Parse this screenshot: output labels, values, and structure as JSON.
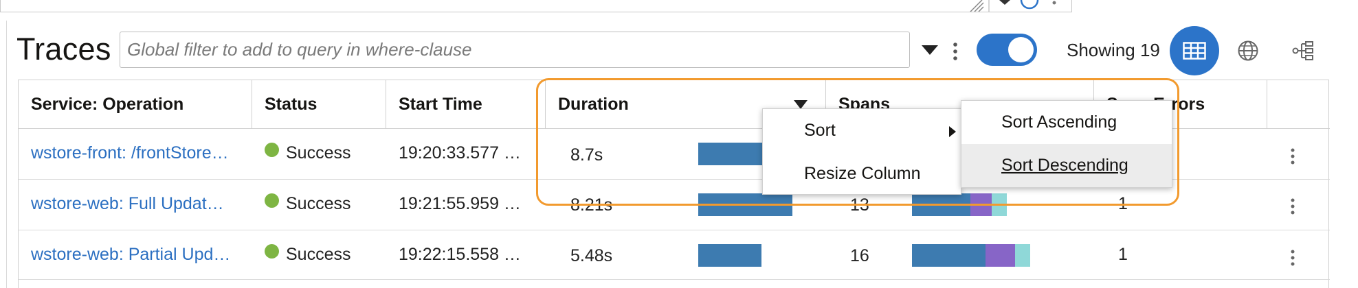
{
  "toolbar": {
    "title": "Traces",
    "filter_placeholder": "Global filter to add to query in where-clause",
    "showing_text": "Showing 19",
    "toggle_on": true,
    "accent_color": "#2c74c9"
  },
  "table": {
    "columns": [
      "Service: Operation",
      "Status",
      "Start Time",
      "Duration",
      "Spans",
      "Span Errors"
    ],
    "rows": [
      {
        "service": "wstore-front: /frontStore…",
        "status": "Success",
        "start": "19:20:33.577 …",
        "duration": "8.7s",
        "duration_fraction": 0.95,
        "spans": "",
        "errors": ""
      },
      {
        "service": "wstore-web: Full Updat…",
        "status": "Success",
        "start": "19:21:55.959 …",
        "duration": "8.21s",
        "duration_fraction": 0.9,
        "spans": "13",
        "errors": "1"
      },
      {
        "service": "wstore-web: Partial Upd…",
        "status": "Success",
        "start": "19:22:15.558 …",
        "duration": "5.48s",
        "duration_fraction": 0.6,
        "spans": "16",
        "errors": "1"
      }
    ],
    "status_color": "#7eb543",
    "bar_color": "#3d7bb0",
    "span_colors": [
      "#3d7bb0",
      "#8765c7",
      "#8fd8d8"
    ]
  },
  "context_menu": {
    "items": [
      "Sort",
      "Resize Column"
    ]
  },
  "sort_submenu": {
    "items": [
      "Sort Ascending",
      "Sort Descending"
    ],
    "active": "Sort Descending"
  },
  "highlight_color": "#f29a2e"
}
